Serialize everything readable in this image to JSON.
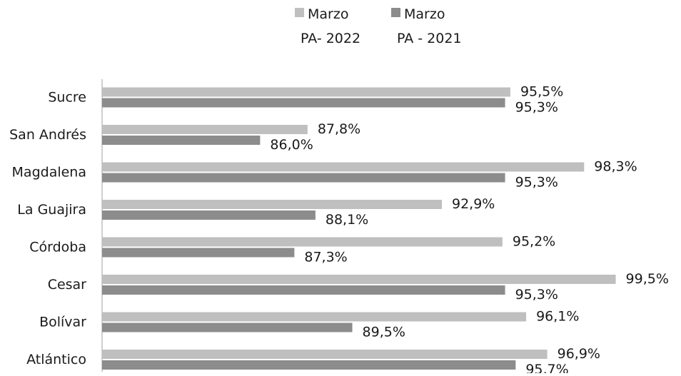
{
  "chart_data": {
    "type": "bar",
    "orientation": "horizontal",
    "categories": [
      "Sucre",
      "San Andrés",
      "Magdalena",
      "La Guajira",
      "Córdoba",
      "Cesar",
      "Bolívar",
      "Atlántico"
    ],
    "series": [
      {
        "name": "Marzo PA- 2022",
        "legend_lines": [
          "Marzo",
          "PA- 2022"
        ],
        "color": "#bfbfbf",
        "values": [
          95.5,
          87.8,
          98.3,
          92.9,
          95.2,
          99.5,
          96.1,
          96.9
        ],
        "labels": [
          "95,5%",
          "87,8%",
          "98,3%",
          "92,9%",
          "95,2%",
          "99,5%",
          "96,1%",
          "96,9%"
        ]
      },
      {
        "name": "Marzo PA - 2021",
        "legend_lines": [
          "Marzo",
          "PA - 2021"
        ],
        "color": "#8c8c8c",
        "values": [
          95.3,
          86.0,
          95.3,
          88.1,
          87.3,
          95.3,
          89.5,
          95.7
        ],
        "labels": [
          "95,3%",
          "86,0%",
          "95,3%",
          "88,1%",
          "87,3%",
          "95,3%",
          "89,5%",
          "95,7%"
        ]
      }
    ],
    "xlim": [
      80,
      100
    ],
    "title": "",
    "xlabel": "",
    "ylabel": "",
    "grid": false,
    "legend_position": "top"
  }
}
